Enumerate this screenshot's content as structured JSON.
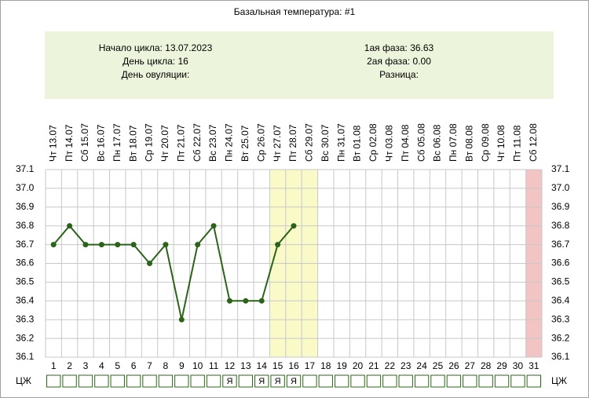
{
  "chart_data": {
    "type": "line",
    "title": "Базальная температура: #1",
    "info": {
      "left": [
        "Начало цикла: 13.07.2023",
        "День цикла: 16",
        "День овуляции:"
      ],
      "right": [
        "1ая фаза: 36.63",
        "2ая фаза: 0.00",
        "Разница:"
      ]
    },
    "categories": [
      "Чт 13.07",
      "Пт 14.07",
      "Сб 15.07",
      "Вс 16.07",
      "Пн 17.07",
      "Вт 18.07",
      "Ср 19.07",
      "Чт 20.07",
      "Пт 21.07",
      "Сб 22.07",
      "Вс 23.07",
      "Пн 24.07",
      "Вт 25.07",
      "Ср 26.07",
      "Чт 27.07",
      "Пт 28.07",
      "Сб 29.07",
      "Вс 30.07",
      "Пн 31.07",
      "Вт 01.08",
      "Ср 02.08",
      "Чт 03.08",
      "Пт 04.08",
      "Сб 05.08",
      "Вс 06.08",
      "Пн 07.08",
      "Вт 08.08",
      "Ср 09.08",
      "Чт 10.08",
      "Пт 11.08",
      "Сб 12.08"
    ],
    "day_numbers": [
      1,
      2,
      3,
      4,
      5,
      6,
      7,
      8,
      9,
      10,
      11,
      12,
      13,
      14,
      15,
      16,
      17,
      18,
      19,
      20,
      21,
      22,
      23,
      24,
      25,
      26,
      27,
      28,
      29,
      30,
      31
    ],
    "values": [
      36.7,
      36.8,
      36.7,
      36.7,
      36.7,
      36.7,
      36.6,
      36.7,
      36.3,
      36.7,
      36.8,
      36.4,
      36.4,
      36.4,
      36.7,
      36.8,
      null,
      null,
      null,
      null,
      null,
      null,
      null,
      null,
      null,
      null,
      null,
      null,
      null,
      null,
      null
    ],
    "color": "#2b6419",
    "ylim": [
      36.1,
      37.1
    ],
    "yticks": [
      36.1,
      36.2,
      36.3,
      36.4,
      36.5,
      36.6,
      36.7,
      36.8,
      36.9,
      {
        "value": 37,
        "label": "37.0"
      },
      37.1
    ],
    "grid": true,
    "highlights": [
      {
        "from": 15,
        "to": 17,
        "color": "#fafac8"
      },
      {
        "from": 31,
        "to": 31,
        "color": "#f2c4c4"
      }
    ],
    "mucus_label": "ЦЖ",
    "mucus": [
      null,
      null,
      null,
      null,
      null,
      null,
      null,
      null,
      null,
      null,
      null,
      "Я",
      null,
      "Я",
      "Я",
      "Я",
      null,
      null,
      null,
      null,
      null,
      null,
      null,
      null,
      null,
      null,
      null,
      null,
      null,
      null,
      null
    ]
  }
}
